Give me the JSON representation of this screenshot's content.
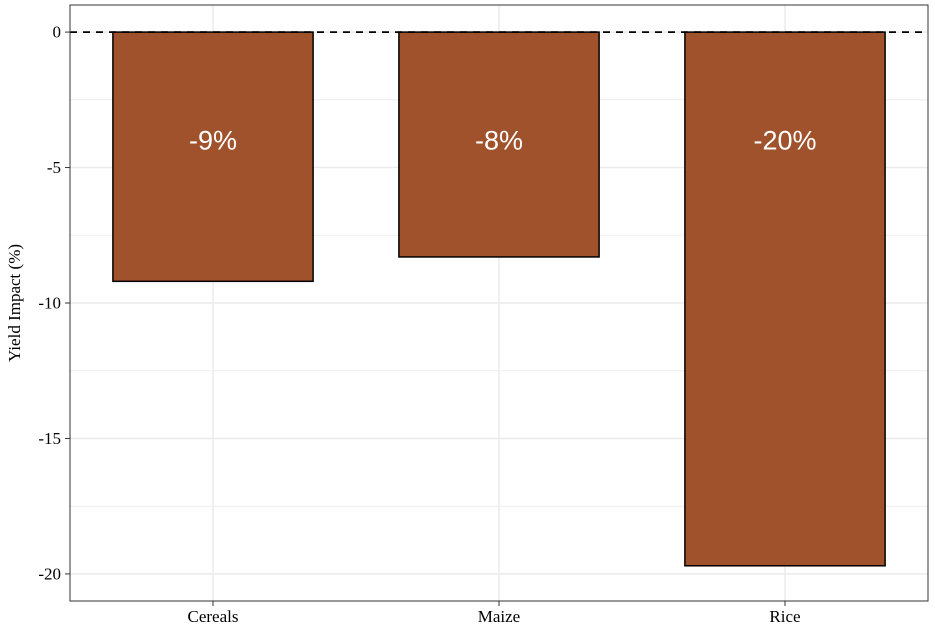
{
  "chart_data": {
    "type": "bar",
    "title": "",
    "xlabel": "",
    "ylabel": "Yield Impact (%)",
    "categories": [
      "Cereals",
      "Maize",
      "Rice"
    ],
    "values": [
      -9.2,
      -8.3,
      -19.7
    ],
    "data_labels": [
      "-9%",
      "-8%",
      "-20%"
    ],
    "ylim": [
      -21,
      1
    ],
    "yticks": [
      0,
      -5,
      -10,
      -15,
      -20
    ],
    "ytick_labels": [
      "0",
      "-5",
      "-10",
      "-15",
      "-20"
    ],
    "reference_line": 0,
    "grid": true,
    "legend": "none",
    "colors": {
      "bar_fill": "#A0522D",
      "bar_stroke": "#000000",
      "grid": "#EBEBEB",
      "panel_border": "#333333",
      "label_text": "#FFFFFF"
    }
  }
}
